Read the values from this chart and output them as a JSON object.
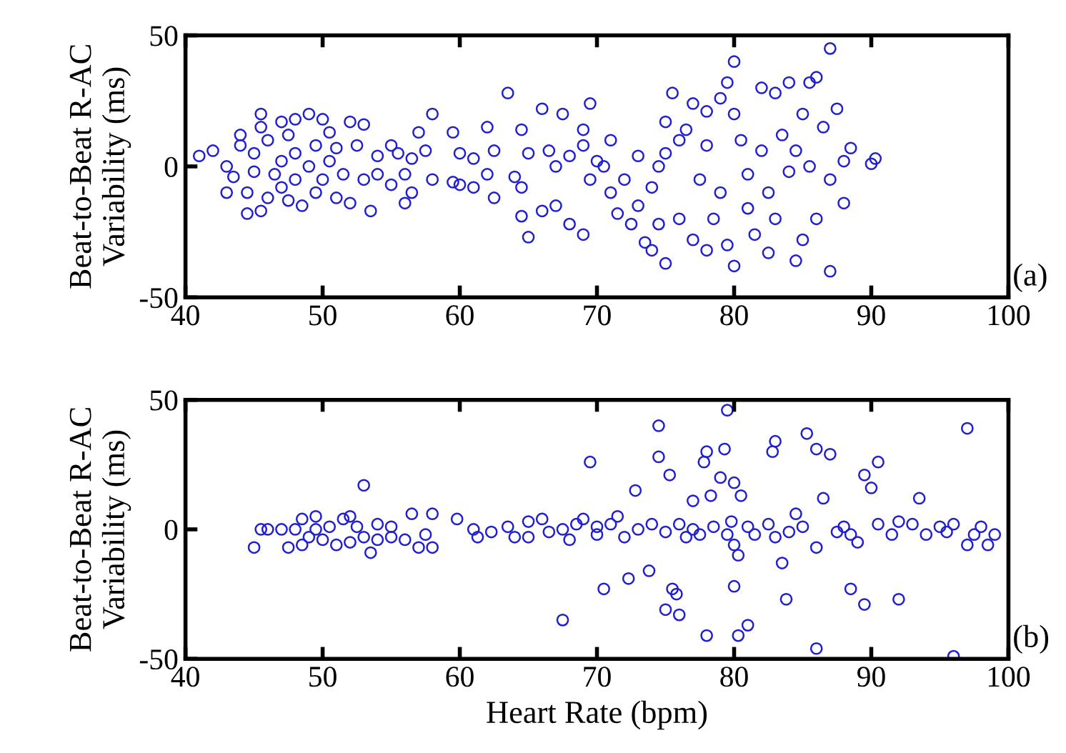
{
  "chart_data": [
    {
      "type": "scatter",
      "ylabel": "Beat-to-Beat R-AC\nVariability (ms)",
      "annotations": [
        "(a)"
      ],
      "marker": "circle",
      "grid": false,
      "legend": false,
      "xlim": [
        40,
        100
      ],
      "xticks": [
        40,
        50,
        60,
        70,
        80,
        90,
        100
      ],
      "ylim": [
        -50,
        50
      ],
      "yticks": [
        {
          "value": -50,
          "label": "-50"
        },
        0,
        50
      ],
      "series": [
        {
          "color": "#2020d0",
          "x": [
            41,
            42,
            43,
            43,
            43.5,
            44,
            44,
            44.5,
            44.5,
            45,
            45,
            45.5,
            45.5,
            45.5,
            46,
            46,
            46.5,
            47,
            47,
            47,
            47.5,
            47.5,
            48,
            48,
            48,
            48.5,
            49,
            49,
            49.5,
            49.5,
            50,
            50,
            50.5,
            50.5,
            51,
            51,
            51.5,
            52,
            52,
            52.5,
            53,
            53,
            53.5,
            54,
            54,
            55,
            55,
            55.5,
            56,
            56,
            56.5,
            56.5,
            57,
            57.5,
            58,
            58,
            59.5,
            59.5,
            60,
            60,
            61,
            61,
            62,
            62.5,
            62.5,
            62,
            63.5,
            64,
            64.5,
            64.5,
            64.5,
            65,
            65,
            66,
            66,
            66.5,
            67,
            67,
            67.5,
            68,
            68,
            69,
            69,
            69,
            69.5,
            69.5,
            70,
            70.5,
            71,
            71,
            71.5,
            72,
            72.5,
            73,
            73,
            73.5,
            74,
            74,
            74.5,
            74.5,
            75,
            75,
            75,
            75.5,
            76,
            76,
            76.5,
            77,
            77,
            77.5,
            78,
            78,
            78,
            78.5,
            79,
            79,
            79.5,
            79.5,
            80,
            80,
            80,
            80.5,
            81,
            81,
            81.5,
            82,
            82,
            82.5,
            82.5,
            83,
            83,
            83.5,
            84,
            84,
            84.5,
            84.5,
            85,
            85,
            85.5,
            85.5,
            86,
            86,
            86.5,
            87,
            87,
            87,
            87.5,
            88,
            88,
            88.5,
            90,
            90.3
          ],
          "values": [
            4,
            6,
            0,
            -10,
            -4,
            8,
            12,
            -18,
            -10,
            -2,
            5,
            20,
            15,
            -17,
            -12,
            10,
            -3,
            17,
            2,
            -8,
            -13,
            12,
            5,
            -5,
            18,
            -15,
            20,
            0,
            8,
            -10,
            18,
            -5,
            13,
            2,
            7,
            -12,
            -3,
            17,
            -14,
            8,
            16,
            -5,
            -17,
            4,
            -3,
            8,
            -7,
            5,
            -3,
            -14,
            -10,
            3,
            13,
            6,
            20,
            -5,
            13,
            -6,
            -7,
            5,
            3,
            -8,
            15,
            6,
            -12,
            -3,
            28,
            -4,
            -8,
            14,
            -19,
            -27,
            5,
            22,
            -17,
            6,
            0,
            -15,
            20,
            -22,
            4,
            14,
            -26,
            8,
            -5,
            24,
            2,
            0,
            10,
            -10,
            -18,
            -5,
            -22,
            4,
            -15,
            -29,
            -32,
            -8,
            0,
            -22,
            17,
            -37,
            5,
            28,
            -20,
            10,
            14,
            -28,
            24,
            -5,
            -32,
            21,
            8,
            -20,
            -10,
            26,
            32,
            -30,
            -38,
            40,
            20,
            10,
            -16,
            -3,
            -26,
            6,
            30,
            -10,
            -33,
            28,
            -20,
            12,
            32,
            -2,
            -36,
            6,
            -28,
            20,
            32,
            0,
            -20,
            34,
            15,
            -40,
            45,
            -5,
            22,
            -14,
            2,
            7,
            1,
            3
          ]
        }
      ]
    },
    {
      "type": "scatter",
      "ylabel": "Beat-to-Beat R-AC\nVariability (ms)",
      "xlabel": "Heart Rate (bpm)",
      "annotations": [
        "(b)"
      ],
      "marker": "circle",
      "grid": false,
      "legend": false,
      "xlim": [
        40,
        100
      ],
      "xticks": [
        40,
        50,
        60,
        70,
        80,
        90,
        100
      ],
      "ylim": [
        -50,
        50
      ],
      "yticks": [
        {
          "value": -50,
          "label": "-50"
        },
        0,
        50
      ],
      "series": [
        {
          "color": "#2020d0",
          "x": [
            45,
            45.5,
            46,
            47,
            47.5,
            48,
            48.5,
            48.5,
            49,
            49.5,
            49.5,
            50,
            50.5,
            51,
            51.5,
            52,
            52,
            52.5,
            53,
            53,
            53.5,
            54,
            54,
            55,
            55,
            56,
            56.5,
            57,
            57.5,
            58,
            58,
            59.8,
            61,
            61.3,
            62.3,
            63.5,
            64,
            65,
            65,
            66,
            66.5,
            67.5,
            67.5,
            68,
            68.5,
            69,
            69.5,
            70,
            70,
            70.5,
            71,
            71.5,
            72,
            72.3,
            72.8,
            73,
            73.8,
            74,
            74.5,
            74.5,
            75,
            75,
            75.3,
            75.5,
            75.8,
            76,
            76,
            76.5,
            77,
            77,
            77.5,
            77.8,
            78,
            78,
            78.3,
            78.5,
            79,
            79.3,
            79.5,
            79.5,
            79.8,
            80,
            80,
            80,
            80.3,
            80.3,
            80.5,
            81,
            81,
            81.5,
            82.5,
            82.8,
            83,
            83,
            83.5,
            83.8,
            84,
            84.5,
            85,
            85.3,
            86,
            86,
            86,
            86.5,
            87,
            87.5,
            88,
            88.5,
            88.5,
            89,
            89.5,
            89.5,
            90,
            90.5,
            90.5,
            91.5,
            92,
            92,
            93,
            93.5,
            94,
            95,
            95.5,
            96,
            96,
            97,
            97,
            97.5,
            98,
            98.5,
            99
          ],
          "values": [
            -7,
            0,
            0,
            0,
            -7,
            0,
            4,
            -6,
            -3,
            5,
            0,
            -4,
            1,
            -6,
            4,
            5,
            -5,
            1,
            17,
            -3,
            -9,
            2,
            -4,
            1,
            -3,
            -4,
            6,
            -7,
            -2,
            6,
            -7,
            4,
            0,
            -3,
            -1,
            1,
            -3,
            3,
            -3,
            4,
            -1,
            -35,
            0,
            -4,
            2,
            4,
            26,
            -2,
            1,
            -23,
            2,
            5,
            -3,
            -19,
            15,
            0,
            -16,
            2,
            40,
            28,
            -31,
            -1,
            21,
            -23,
            -25,
            -33,
            2,
            -3,
            11,
            0,
            -2,
            26,
            30,
            -41,
            13,
            1,
            20,
            31,
            46,
            -2,
            3,
            18,
            -22,
            -6,
            -10,
            -41,
            13,
            -37,
            1,
            -2,
            2,
            30,
            34,
            -3,
            -13,
            -27,
            -1,
            6,
            1,
            37,
            -46,
            31,
            -7,
            12,
            29,
            -1,
            1,
            -2,
            -23,
            -5,
            21,
            -29,
            16,
            26,
            2,
            -2,
            -27,
            3,
            2,
            12,
            -2,
            1,
            -1,
            -49,
            2,
            39,
            -6,
            -2,
            1,
            -6,
            -2
          ]
        }
      ]
    }
  ]
}
